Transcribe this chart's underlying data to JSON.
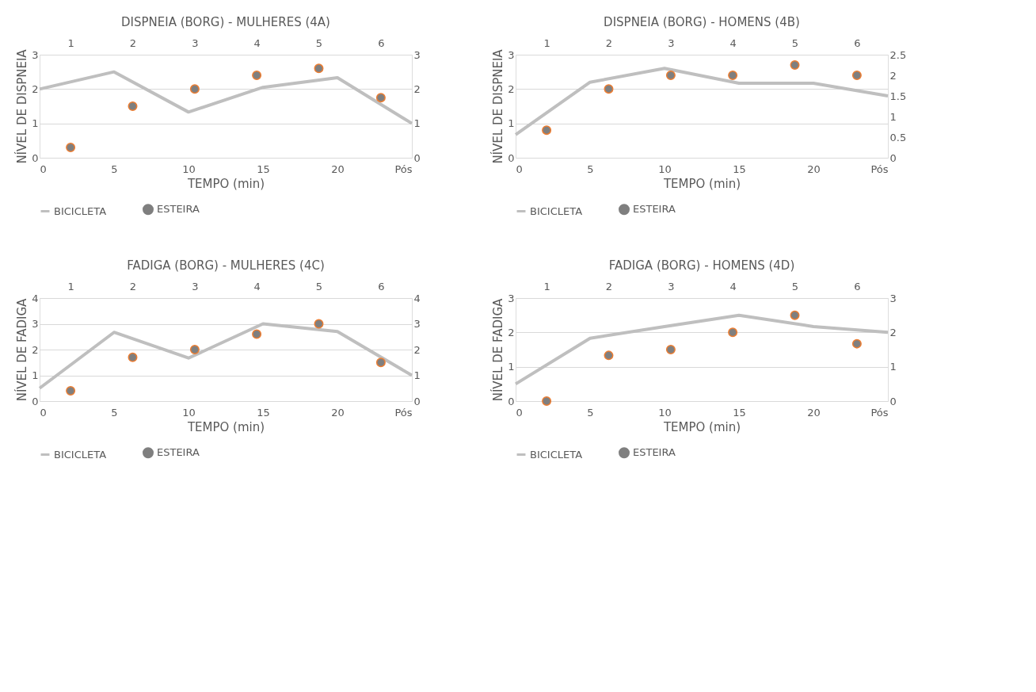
{
  "chart_data": [
    {
      "type": "line",
      "title": "DISPNEIA (BORG) - MULHERES (4A)",
      "xlabel": "TEMPO (min)",
      "ylabel": "NÍVEL DE DISPNEIA",
      "xlim": [
        0,
        25
      ],
      "xticks": [
        0,
        5,
        10,
        15,
        20,
        {
          "value": 25,
          "label": "Pós"
        }
      ],
      "ylim": [
        0,
        3
      ],
      "yticks": [
        0,
        1,
        2,
        3
      ],
      "y2lim": [
        0,
        3
      ],
      "y2ticks": [
        0,
        1,
        2,
        3
      ],
      "x2lim": [
        0.5,
        6.5
      ],
      "x2ticks": [
        1,
        2,
        3,
        4,
        5,
        6
      ],
      "grid": "y",
      "legend": "bottom",
      "series": [
        {
          "name": "BICICLETA",
          "type": "line",
          "color": "#bfbfbf",
          "marker": "none",
          "x": [
            0,
            5,
            10,
            15,
            20,
            25
          ],
          "values": [
            2.0,
            2.5,
            1.33,
            2.05,
            2.33,
            1.0
          ]
        },
        {
          "name": "ESTEIRA",
          "type": "scatter",
          "axis": "y2",
          "color": "#7f7f7f",
          "marker": "circle",
          "x": [
            2.08,
            6.25,
            10.42,
            14.58,
            18.75,
            22.92
          ],
          "values": [
            0.3,
            1.5,
            2.0,
            2.4,
            2.6,
            1.75
          ]
        }
      ]
    },
    {
      "type": "line",
      "title": "DISPNEIA (BORG) - HOMENS (4B)",
      "xlabel": "TEMPO (min)",
      "ylabel": "NÍVEL DE DISPNEIA",
      "xlim": [
        0,
        25
      ],
      "xticks": [
        0,
        5,
        10,
        15,
        20,
        {
          "value": 25,
          "label": "Pós"
        }
      ],
      "ylim": [
        0,
        3
      ],
      "yticks": [
        0,
        1,
        2,
        3
      ],
      "y2lim": [
        0,
        2.5
      ],
      "y2ticks": [
        0,
        0.5,
        1,
        1.5,
        2,
        2.5
      ],
      "x2lim": [
        0.5,
        6.5
      ],
      "x2ticks": [
        1,
        2,
        3,
        4,
        5,
        6
      ],
      "grid": "y",
      "legend": "bottom",
      "series": [
        {
          "name": "BICICLETA",
          "type": "line",
          "color": "#bfbfbf",
          "marker": "none",
          "x": [
            0,
            5,
            10,
            15,
            20,
            25
          ],
          "values": [
            0.67,
            2.2,
            2.6,
            2.17,
            2.17,
            1.8
          ]
        },
        {
          "name": "ESTEIRA",
          "type": "scatter",
          "axis": "y2",
          "color": "#7f7f7f",
          "marker": "circle",
          "x": [
            2.08,
            6.25,
            10.42,
            14.58,
            18.75,
            22.92
          ],
          "values": [
            0.67,
            1.67,
            2.0,
            2.0,
            2.25,
            2.0
          ]
        }
      ]
    },
    {
      "type": "line",
      "title": "FADIGA (BORG) - MULHERES (4C)",
      "xlabel": "TEMPO (min)",
      "ylabel": "NÍVEL DE FADIGA",
      "xlim": [
        0,
        25
      ],
      "xticks": [
        0,
        5,
        10,
        15,
        20,
        {
          "value": 25,
          "label": "Pós"
        }
      ],
      "ylim": [
        0,
        4
      ],
      "yticks": [
        0,
        1,
        2,
        3,
        4
      ],
      "y2lim": [
        0,
        4
      ],
      "y2ticks": [
        0,
        1,
        2,
        3,
        4
      ],
      "x2lim": [
        0.5,
        6.5
      ],
      "x2ticks": [
        1,
        2,
        3,
        4,
        5,
        6
      ],
      "grid": "y",
      "legend": "bottom",
      "series": [
        {
          "name": "BICICLETA",
          "type": "line",
          "color": "#bfbfbf",
          "marker": "none",
          "x": [
            0,
            5,
            10,
            15,
            20,
            25
          ],
          "values": [
            0.5,
            2.67,
            1.67,
            3.0,
            2.7,
            1.0
          ]
        },
        {
          "name": "ESTEIRA",
          "type": "scatter",
          "axis": "y2",
          "color": "#7f7f7f",
          "marker": "circle",
          "x": [
            2.08,
            6.25,
            10.42,
            14.58,
            18.75,
            22.92
          ],
          "values": [
            0.4,
            1.7,
            2.0,
            2.6,
            3.0,
            1.5
          ]
        }
      ]
    },
    {
      "type": "line",
      "title": "FADIGA (BORG) - HOMENS (4D)",
      "xlabel": "TEMPO (min)",
      "ylabel": "NÍVEL DE FADIGA",
      "xlim": [
        0,
        25
      ],
      "xticks": [
        0,
        5,
        10,
        15,
        20,
        {
          "value": 25,
          "label": "Pós"
        }
      ],
      "ylim": [
        0,
        3
      ],
      "yticks": [
        0,
        1,
        2,
        3
      ],
      "y2lim": [
        0,
        3
      ],
      "y2ticks": [
        0,
        1,
        2,
        3
      ],
      "x2lim": [
        0.5,
        6.5
      ],
      "x2ticks": [
        1,
        2,
        3,
        4,
        5,
        6
      ],
      "grid": "y",
      "legend": "bottom",
      "series": [
        {
          "name": "BICICLETA",
          "type": "line",
          "color": "#bfbfbf",
          "marker": "none",
          "x": [
            0,
            5,
            10,
            15,
            20,
            25
          ],
          "values": [
            0.5,
            1.83,
            2.17,
            2.5,
            2.17,
            2.0
          ]
        },
        {
          "name": "ESTEIRA",
          "type": "scatter",
          "axis": "y2",
          "color": "#7f7f7f",
          "marker": "circle",
          "x": [
            2.08,
            6.25,
            10.42,
            14.58,
            18.75,
            22.92
          ],
          "values": [
            0.0,
            1.33,
            1.5,
            2.0,
            2.5,
            1.67
          ]
        }
      ]
    }
  ]
}
